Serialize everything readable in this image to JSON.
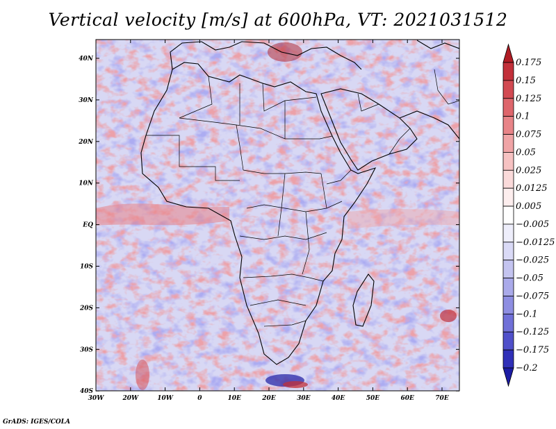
{
  "title": "Vertical velocity [m/s] at 600hPa, VT: 2021031512",
  "footer": "GrADS: IGES/COLA",
  "axes": {
    "lon_ticks": [
      "30W",
      "20W",
      "10W",
      "0",
      "10E",
      "20E",
      "30E",
      "40E",
      "50E",
      "60E",
      "70E"
    ],
    "lat_ticks": [
      "40N",
      "30N",
      "20N",
      "10N",
      "EQ",
      "10S",
      "20S",
      "30S",
      "40S"
    ]
  },
  "colorbar": {
    "levels": [
      "0.175",
      "0.15",
      "0.125",
      "0.1",
      "0.075",
      "0.05",
      "0.025",
      "0.0125",
      "0.005",
      "−0.005",
      "−0.0125",
      "−0.025",
      "−0.05",
      "−0.075",
      "−0.1",
      "−0.125",
      "−0.175",
      "−0.2"
    ],
    "colors": [
      "#b01c24",
      "#c2303a",
      "#d24a52",
      "#de666c",
      "#e88488",
      "#f0a4a6",
      "#f6c2c2",
      "#fadada",
      "#fdeeee",
      "#ffffff",
      "#eeeefb",
      "#dadaf6",
      "#c4c4f0",
      "#aaaaea",
      "#8e8ee2",
      "#7070d8",
      "#5050ca",
      "#3030b8",
      "#1c1ca4"
    ]
  }
}
